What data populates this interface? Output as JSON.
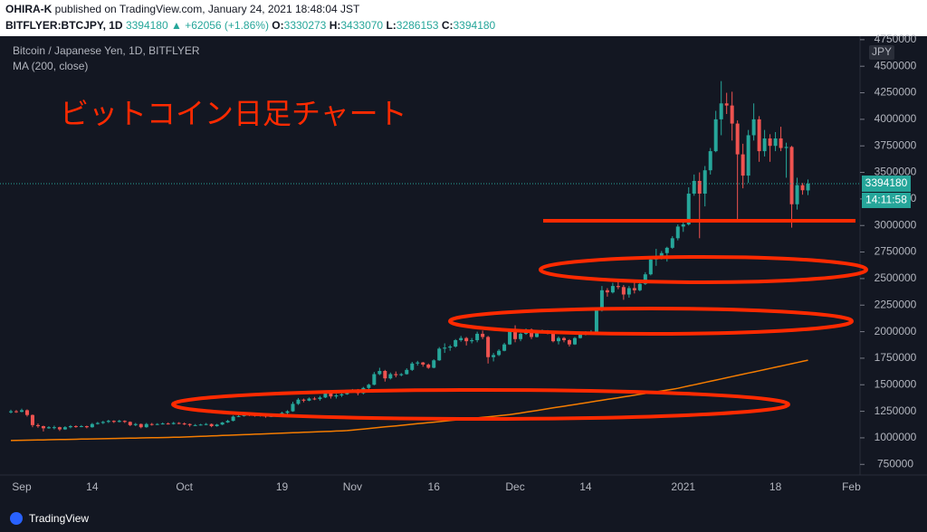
{
  "header": {
    "author": "OHIRA-K",
    "published": "published on TradingView.com, January 24, 2021 18:48:04 JST",
    "symbol": "BITFLYER:BTCJPY, 1D",
    "change": "▲ +62056 (+1.86%)",
    "open_label": "O:",
    "high_label": "H:",
    "low_label": "L:",
    "close_label": "C:"
  },
  "footer": {
    "brand": "TradingView"
  },
  "chart_data": {
    "type": "candlestick",
    "title": "Bitcoin / Japanese Yen, 1D, BITFLYER",
    "currency": "JPY",
    "countdown": "14:11:58",
    "annotation": "ビットコイン日足チャート",
    "up_color": "#26a69a",
    "down_color": "#ef5350",
    "grid": false,
    "ylim": [
      650000,
      4800000
    ],
    "yticks": [
      750000,
      1000000,
      1250000,
      1500000,
      1750000,
      2000000,
      2250000,
      2500000,
      2750000,
      3000000,
      3250000,
      3500000,
      3750000,
      4000000,
      4250000,
      4500000,
      4750000
    ],
    "categories": [
      null,
      null,
      "Sep",
      null,
      null,
      null,
      null,
      null,
      null,
      null,
      null,
      null,
      null,
      null,
      null,
      "14",
      null,
      null,
      null,
      null,
      null,
      null,
      null,
      null,
      null,
      null,
      null,
      null,
      null,
      null,
      null,
      null,
      "Oct",
      null,
      null,
      null,
      null,
      null,
      null,
      null,
      null,
      null,
      null,
      null,
      null,
      null,
      null,
      null,
      null,
      null,
      "19",
      null,
      null,
      null,
      null,
      null,
      null,
      null,
      null,
      null,
      null,
      null,
      null,
      "Nov",
      null,
      null,
      null,
      null,
      null,
      null,
      null,
      null,
      null,
      null,
      null,
      null,
      null,
      null,
      "16",
      null,
      null,
      null,
      null,
      null,
      null,
      null,
      null,
      null,
      null,
      null,
      null,
      null,
      null,
      "Dec",
      null,
      null,
      null,
      null,
      null,
      null,
      null,
      null,
      null,
      null,
      null,
      null,
      "14",
      null,
      null,
      null,
      null,
      null,
      null,
      null,
      null,
      null,
      null,
      null,
      null,
      null,
      null,
      null,
      null,
      null,
      "2021",
      null,
      null,
      null,
      null,
      null,
      null,
      null,
      null,
      null,
      null,
      null,
      null,
      null,
      null,
      null,
      null,
      "18",
      null,
      null,
      null,
      null,
      null,
      null,
      null,
      null,
      null,
      null,
      null,
      null,
      null,
      "Feb"
    ],
    "ohlc": [
      [
        1240000,
        1265000,
        1230000,
        1250000
      ],
      [
        1250000,
        1262000,
        1235000,
        1245000
      ],
      [
        1245000,
        1275000,
        1240000,
        1260000
      ],
      [
        1260000,
        1268000,
        1200000,
        1215000
      ],
      [
        1215000,
        1220000,
        1100000,
        1120000
      ],
      [
        1120000,
        1135000,
        1095000,
        1110000
      ],
      [
        1110000,
        1115000,
        1060000,
        1090000
      ],
      [
        1090000,
        1110000,
        1085000,
        1100000
      ],
      [
        1100000,
        1115000,
        1080000,
        1100000
      ],
      [
        1100000,
        1105000,
        1065000,
        1080000
      ],
      [
        1080000,
        1110000,
        1075000,
        1100000
      ],
      [
        1100000,
        1120000,
        1090000,
        1110000
      ],
      [
        1110000,
        1118000,
        1095000,
        1105000
      ],
      [
        1105000,
        1120000,
        1100000,
        1110000
      ],
      [
        1110000,
        1115000,
        1090000,
        1100000
      ],
      [
        1100000,
        1140000,
        1095000,
        1130000
      ],
      [
        1130000,
        1150000,
        1125000,
        1140000
      ],
      [
        1140000,
        1160000,
        1130000,
        1150000
      ],
      [
        1150000,
        1170000,
        1140000,
        1160000
      ],
      [
        1160000,
        1165000,
        1140000,
        1150000
      ],
      [
        1150000,
        1170000,
        1145000,
        1160000
      ],
      [
        1160000,
        1165000,
        1140000,
        1150000
      ],
      [
        1150000,
        1155000,
        1110000,
        1120000
      ],
      [
        1120000,
        1140000,
        1110000,
        1130000
      ],
      [
        1130000,
        1135000,
        1090000,
        1100000
      ],
      [
        1100000,
        1140000,
        1095000,
        1130000
      ],
      [
        1130000,
        1140000,
        1115000,
        1125000
      ],
      [
        1125000,
        1138000,
        1120000,
        1130000
      ],
      [
        1130000,
        1145000,
        1125000,
        1135000
      ],
      [
        1135000,
        1145000,
        1125000,
        1130000
      ],
      [
        1130000,
        1150000,
        1125000,
        1140000
      ],
      [
        1140000,
        1148000,
        1128000,
        1135000
      ],
      [
        1135000,
        1145000,
        1120000,
        1130000
      ],
      [
        1130000,
        1135000,
        1105000,
        1120000
      ],
      [
        1120000,
        1130000,
        1112000,
        1120000
      ],
      [
        1120000,
        1132000,
        1115000,
        1125000
      ],
      [
        1125000,
        1140000,
        1118000,
        1130000
      ],
      [
        1130000,
        1135000,
        1100000,
        1110000
      ],
      [
        1110000,
        1132000,
        1105000,
        1125000
      ],
      [
        1125000,
        1150000,
        1120000,
        1145000
      ],
      [
        1145000,
        1170000,
        1140000,
        1160000
      ],
      [
        1160000,
        1210000,
        1155000,
        1200000
      ],
      [
        1200000,
        1215000,
        1195000,
        1205000
      ],
      [
        1205000,
        1235000,
        1200000,
        1220000
      ],
      [
        1220000,
        1228000,
        1205000,
        1215000
      ],
      [
        1215000,
        1225000,
        1200000,
        1210000
      ],
      [
        1210000,
        1222000,
        1200000,
        1215000
      ],
      [
        1215000,
        1218000,
        1190000,
        1200000
      ],
      [
        1200000,
        1212000,
        1195000,
        1205000
      ],
      [
        1205000,
        1222000,
        1200000,
        1215000
      ],
      [
        1215000,
        1245000,
        1210000,
        1235000
      ],
      [
        1235000,
        1260000,
        1225000,
        1250000
      ],
      [
        1250000,
        1340000,
        1245000,
        1320000
      ],
      [
        1320000,
        1375000,
        1310000,
        1360000
      ],
      [
        1360000,
        1370000,
        1335000,
        1350000
      ],
      [
        1350000,
        1380000,
        1345000,
        1370000
      ],
      [
        1370000,
        1385000,
        1355000,
        1365000
      ],
      [
        1365000,
        1395000,
        1350000,
        1380000
      ],
      [
        1380000,
        1435000,
        1375000,
        1420000
      ],
      [
        1420000,
        1430000,
        1370000,
        1390000
      ],
      [
        1390000,
        1415000,
        1370000,
        1400000
      ],
      [
        1400000,
        1420000,
        1385000,
        1410000
      ],
      [
        1410000,
        1450000,
        1405000,
        1440000
      ],
      [
        1440000,
        1460000,
        1430000,
        1450000
      ],
      [
        1450000,
        1460000,
        1400000,
        1420000
      ],
      [
        1420000,
        1480000,
        1410000,
        1470000
      ],
      [
        1470000,
        1510000,
        1455000,
        1500000
      ],
      [
        1500000,
        1620000,
        1495000,
        1600000
      ],
      [
        1600000,
        1660000,
        1590000,
        1630000
      ],
      [
        1630000,
        1640000,
        1530000,
        1560000
      ],
      [
        1560000,
        1615000,
        1550000,
        1600000
      ],
      [
        1600000,
        1625000,
        1570000,
        1590000
      ],
      [
        1590000,
        1610000,
        1580000,
        1600000
      ],
      [
        1600000,
        1655000,
        1595000,
        1640000
      ],
      [
        1640000,
        1715000,
        1630000,
        1700000
      ],
      [
        1700000,
        1725000,
        1680000,
        1710000
      ],
      [
        1710000,
        1715000,
        1670000,
        1690000
      ],
      [
        1690000,
        1700000,
        1650000,
        1660000
      ],
      [
        1660000,
        1740000,
        1655000,
        1730000
      ],
      [
        1730000,
        1855000,
        1725000,
        1840000
      ],
      [
        1840000,
        1890000,
        1800000,
        1850000
      ],
      [
        1850000,
        1875000,
        1820000,
        1860000
      ],
      [
        1860000,
        1930000,
        1850000,
        1920000
      ],
      [
        1920000,
        1960000,
        1905000,
        1940000
      ],
      [
        1940000,
        1950000,
        1870000,
        1910000
      ],
      [
        1910000,
        1940000,
        1890000,
        1920000
      ],
      [
        1920000,
        2000000,
        1900000,
        1980000
      ],
      [
        1980000,
        2010000,
        1930000,
        1950000
      ],
      [
        1950000,
        1960000,
        1700000,
        1760000
      ],
      [
        1760000,
        1800000,
        1720000,
        1780000
      ],
      [
        1780000,
        1835000,
        1770000,
        1820000
      ],
      [
        1820000,
        1895000,
        1815000,
        1880000
      ],
      [
        1880000,
        2030000,
        1875000,
        2000000
      ],
      [
        2000000,
        2060000,
        1900000,
        1930000
      ],
      [
        1930000,
        1990000,
        1910000,
        1980000
      ],
      [
        1980000,
        2030000,
        1970000,
        2020000
      ],
      [
        2020000,
        2030000,
        1930000,
        1950000
      ],
      [
        1950000,
        2010000,
        1945000,
        2000000
      ],
      [
        2000000,
        2020000,
        1985000,
        2010000
      ],
      [
        2010000,
        2015000,
        1975000,
        1990000
      ],
      [
        1990000,
        2000000,
        1900000,
        1910000
      ],
      [
        1910000,
        1955000,
        1880000,
        1940000
      ],
      [
        1940000,
        1950000,
        1900000,
        1920000
      ],
      [
        1920000,
        1930000,
        1860000,
        1880000
      ],
      [
        1880000,
        1950000,
        1875000,
        1940000
      ],
      [
        1940000,
        1995000,
        1935000,
        1980000
      ],
      [
        1980000,
        2005000,
        1965000,
        1990000
      ],
      [
        1990000,
        2015000,
        1980000,
        2000000
      ],
      [
        2000000,
        2220000,
        1995000,
        2200000
      ],
      [
        2200000,
        2430000,
        2190000,
        2390000
      ],
      [
        2390000,
        2410000,
        2330000,
        2370000
      ],
      [
        2370000,
        2460000,
        2360000,
        2430000
      ],
      [
        2430000,
        2470000,
        2400000,
        2420000
      ],
      [
        2420000,
        2440000,
        2300000,
        2350000
      ],
      [
        2350000,
        2430000,
        2320000,
        2410000
      ],
      [
        2410000,
        2470000,
        2360000,
        2390000
      ],
      [
        2390000,
        2470000,
        2380000,
        2450000
      ],
      [
        2450000,
        2560000,
        2440000,
        2540000
      ],
      [
        2540000,
        2700000,
        2530000,
        2680000
      ],
      [
        2680000,
        2780000,
        2620000,
        2700000
      ],
      [
        2700000,
        2760000,
        2680000,
        2740000
      ],
      [
        2740000,
        2800000,
        2660000,
        2790000
      ],
      [
        2790000,
        2900000,
        2780000,
        2880000
      ],
      [
        2880000,
        3010000,
        2860000,
        2990000
      ],
      [
        2990000,
        3050000,
        2940000,
        3010000
      ],
      [
        3010000,
        3360000,
        3000000,
        3300000
      ],
      [
        3300000,
        3480000,
        3280000,
        3420000
      ],
      [
        3420000,
        3500000,
        2880000,
        3300000
      ],
      [
        3300000,
        3560000,
        3180000,
        3520000
      ],
      [
        3520000,
        3730000,
        3480000,
        3700000
      ],
      [
        3700000,
        4080000,
        3690000,
        4000000
      ],
      [
        4000000,
        4360000,
        3850000,
        4150000
      ],
      [
        4150000,
        4250000,
        4050000,
        4130000
      ],
      [
        4130000,
        4260000,
        3800000,
        3960000
      ],
      [
        3960000,
        3990000,
        3050000,
        3670000
      ],
      [
        3670000,
        3770000,
        3350000,
        3470000
      ],
      [
        3470000,
        3900000,
        3400000,
        3850000
      ],
      [
        3850000,
        4150000,
        3800000,
        4000000
      ],
      [
        4000000,
        4030000,
        3600000,
        3700000
      ],
      [
        3700000,
        3900000,
        3650000,
        3820000
      ],
      [
        3820000,
        3860000,
        3600000,
        3750000
      ],
      [
        3750000,
        3880000,
        3700000,
        3820000
      ],
      [
        3820000,
        3930000,
        3700000,
        3730000
      ],
      [
        3730000,
        3780000,
        3450000,
        3740000
      ],
      [
        3740000,
        3750000,
        2980000,
        3200000
      ],
      [
        3200000,
        3450000,
        3150000,
        3380000
      ],
      [
        3380000,
        3400000,
        3290000,
        3332124
      ],
      [
        3330273,
        3433070,
        3286153,
        3394180
      ],
      null,
      null,
      null,
      null,
      null,
      null,
      null,
      null
    ],
    "series": [
      {
        "name": "MA (200, close)",
        "color": "#f57c00",
        "values": [
          975000,
          976000,
          977000,
          978000,
          979000,
          980000,
          981000,
          982000,
          983000,
          984000,
          985000,
          986000,
          987000,
          988000,
          989000,
          990000,
          991000,
          992000,
          993000,
          994000,
          995000,
          996000,
          997000,
          998000,
          999000,
          1000000,
          1001000,
          1002000,
          1003000,
          1004000,
          1005000,
          1006000,
          1008000,
          1010000,
          1012000,
          1014000,
          1016000,
          1018000,
          1020000,
          1022000,
          1024000,
          1026000,
          1028000,
          1030000,
          1032000,
          1034000,
          1036000,
          1038000,
          1040000,
          1042000,
          1044000,
          1046000,
          1048000,
          1050000,
          1052000,
          1054000,
          1056000,
          1058000,
          1060000,
          1062000,
          1064000,
          1066000,
          1068000,
          1073000,
          1078000,
          1083000,
          1088000,
          1093000,
          1098000,
          1103000,
          1108000,
          1113000,
          1118000,
          1123000,
          1128000,
          1133000,
          1138000,
          1143000,
          1148000,
          1153000,
          1158000,
          1163000,
          1168000,
          1173000,
          1178000,
          1183000,
          1188000,
          1193000,
          1198000,
          1203000,
          1208000,
          1213000,
          1218000,
          1226000,
          1234000,
          1242000,
          1250000,
          1258000,
          1266000,
          1274000,
          1282000,
          1290000,
          1298000,
          1306000,
          1314000,
          1322000,
          1330000,
          1338000,
          1346000,
          1354000,
          1362000,
          1370000,
          1378000,
          1386000,
          1394000,
          1402000,
          1410000,
          1418000,
          1426000,
          1434000,
          1442000,
          1450000,
          1458000,
          1466000,
          1478000,
          1489000,
          1500000,
          1511000,
          1522000,
          1533000,
          1544000,
          1555000,
          1566000,
          1577000,
          1588000,
          1599000,
          1610000,
          1621000,
          1632000,
          1643000,
          1654000,
          1665000,
          1676000,
          1687000,
          1698000,
          1709000,
          1720000,
          1731000,
          null,
          null,
          null,
          null,
          null,
          null,
          null,
          null
        ]
      }
    ]
  }
}
